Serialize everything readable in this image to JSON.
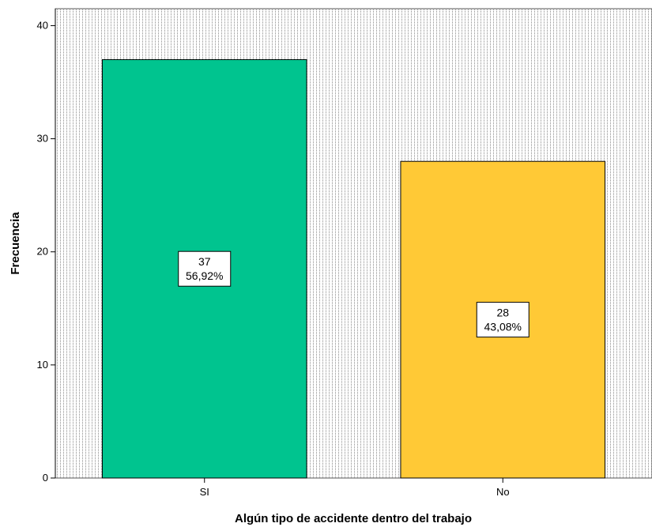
{
  "chart_data": {
    "type": "bar",
    "categories": [
      "SI",
      "No"
    ],
    "values": [
      37,
      28
    ],
    "percent_labels": [
      "56,92%",
      "43,08%"
    ],
    "colors": [
      "#00C48F",
      "#FFC936"
    ],
    "xlabel": "Algún tipo de accidente dentro del trabajo",
    "ylabel": "Frecuencia",
    "ylim": [
      0,
      41.5
    ],
    "yticks": [
      0,
      10,
      20,
      30,
      40
    ],
    "grid": false,
    "plot_background": "dotted vertical pattern"
  }
}
